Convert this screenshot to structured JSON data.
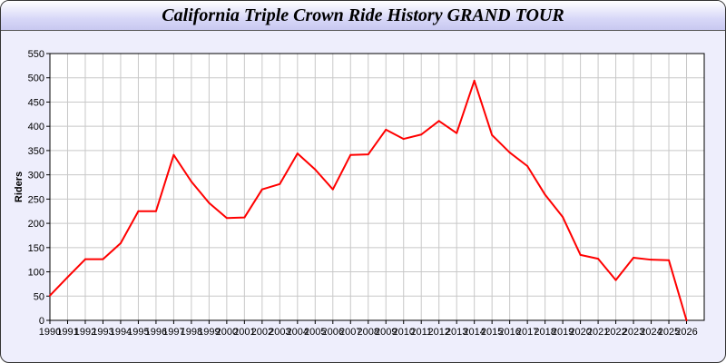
{
  "chart_data": {
    "type": "line",
    "title": "California Triple Crown Ride History GRAND TOUR",
    "xlabel": "",
    "ylabel": "Riders",
    "xlim": [
      1990,
      2027
    ],
    "ylim": [
      0,
      550
    ],
    "yticks": [
      0,
      50,
      100,
      150,
      200,
      250,
      300,
      350,
      400,
      450,
      500,
      550
    ],
    "grid": true,
    "line_color": "#ff0000",
    "x": [
      1990,
      1991,
      1992,
      1993,
      1994,
      1995,
      1996,
      1997,
      1998,
      1999,
      2000,
      2001,
      2002,
      2003,
      2004,
      2005,
      2006,
      2007,
      2008,
      2009,
      2010,
      2011,
      2012,
      2013,
      2014,
      2015,
      2016,
      2017,
      2018,
      2019,
      2020,
      2021,
      2022,
      2023,
      2024,
      2025,
      2026
    ],
    "series": [
      {
        "values": [
          51,
          89,
          126,
          126,
          159,
          225,
          225,
          341,
          286,
          242,
          211,
          212,
          270,
          281,
          344,
          311,
          270,
          341,
          342,
          393,
          374,
          383,
          411,
          386,
          494,
          382,
          346,
          318,
          259,
          213,
          135,
          127,
          83,
          129,
          125,
          124,
          0
        ]
      }
    ]
  }
}
